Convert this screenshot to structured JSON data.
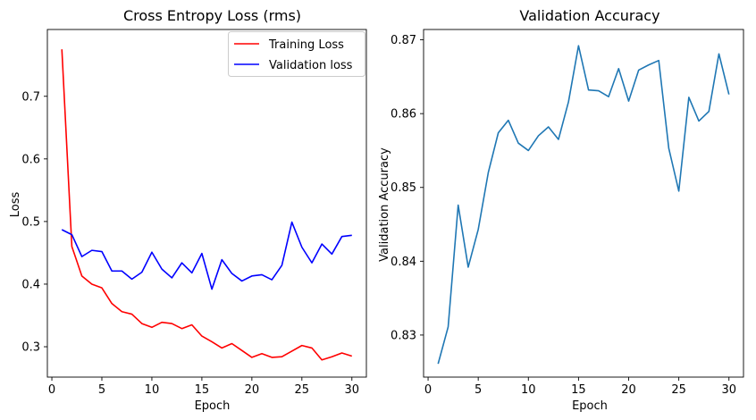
{
  "chart_data": [
    {
      "type": "line",
      "title": "Cross Entropy Loss (rms)",
      "xlabel": "Epoch",
      "ylabel": "Loss",
      "xlim": [
        -0.45,
        31.45
      ],
      "ylim": [
        0.2515,
        0.8067
      ],
      "xticks": [
        0,
        5,
        10,
        15,
        20,
        25,
        30
      ],
      "yticks": [
        0.3,
        0.4,
        0.5,
        0.6,
        0.7
      ],
      "grid": false,
      "legend": "top-right",
      "x": [
        1,
        2,
        3,
        4,
        5,
        6,
        7,
        8,
        9,
        10,
        11,
        12,
        13,
        14,
        15,
        16,
        17,
        18,
        19,
        20,
        21,
        22,
        23,
        24,
        25,
        26,
        27,
        28,
        29,
        30
      ],
      "series": [
        {
          "name": "Training Loss",
          "color": "#ff0000",
          "values": [
            0.775,
            0.46,
            0.413,
            0.4,
            0.394,
            0.369,
            0.356,
            0.352,
            0.337,
            0.331,
            0.339,
            0.337,
            0.329,
            0.335,
            0.317,
            0.308,
            0.298,
            0.305,
            0.294,
            0.283,
            0.289,
            0.283,
            0.284,
            0.293,
            0.302,
            0.298,
            0.279,
            0.284,
            0.29,
            0.285
          ]
        },
        {
          "name": "Validation loss",
          "color": "#0000ff",
          "values": [
            0.487,
            0.479,
            0.444,
            0.454,
            0.452,
            0.421,
            0.421,
            0.408,
            0.419,
            0.451,
            0.424,
            0.41,
            0.434,
            0.418,
            0.449,
            0.392,
            0.439,
            0.417,
            0.405,
            0.413,
            0.415,
            0.407,
            0.43,
            0.499,
            0.459,
            0.434,
            0.464,
            0.448,
            0.476,
            0.478
          ]
        }
      ]
    },
    {
      "type": "line",
      "title": "Validation Accuracy",
      "xlabel": "Epoch",
      "ylabel": "Validation Accuracy",
      "xlim": [
        -0.45,
        31.45
      ],
      "ylim": [
        0.8243,
        0.8714
      ],
      "xticks": [
        0,
        5,
        10,
        15,
        20,
        25,
        30
      ],
      "yticks": [
        0.83,
        0.84,
        0.85,
        0.86,
        0.87
      ],
      "grid": false,
      "x": [
        1,
        2,
        3,
        4,
        5,
        6,
        7,
        8,
        9,
        10,
        11,
        12,
        13,
        14,
        15,
        16,
        17,
        18,
        19,
        20,
        21,
        22,
        23,
        24,
        25,
        26,
        27,
        28,
        29,
        30
      ],
      "series": [
        {
          "color": "#1f77b4",
          "values": [
            0.8261,
            0.8311,
            0.8476,
            0.8392,
            0.8443,
            0.852,
            0.8574,
            0.8591,
            0.856,
            0.855,
            0.857,
            0.8582,
            0.8565,
            0.8616,
            0.8692,
            0.8632,
            0.8631,
            0.8623,
            0.8661,
            0.8617,
            0.8659,
            0.8666,
            0.8672,
            0.8553,
            0.8495,
            0.8622,
            0.859,
            0.8603,
            0.8681,
            0.8626
          ]
        }
      ]
    }
  ]
}
